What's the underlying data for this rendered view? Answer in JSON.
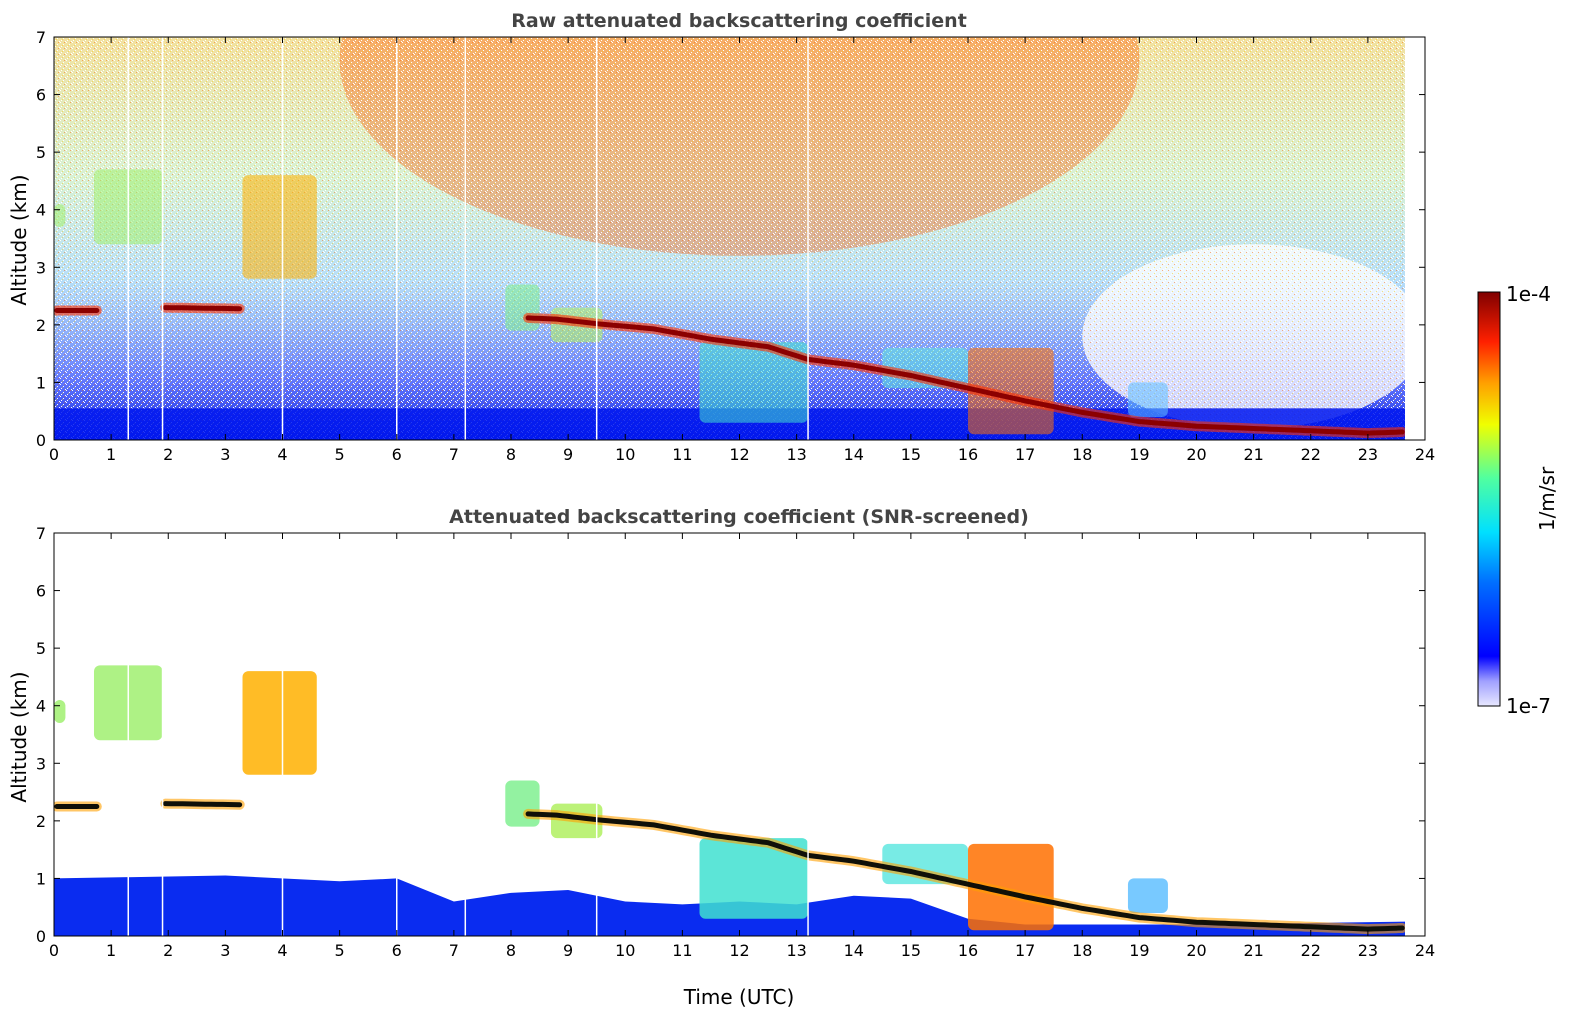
{
  "chart_data": [
    {
      "type": "heatmap",
      "title": "Raw attenuated backscattering coefficient",
      "xlabel": "",
      "ylabel": "Altitude (km)",
      "xlim": [
        0,
        24
      ],
      "ylim": [
        0,
        7
      ],
      "xticks": [
        "0",
        "1",
        "2",
        "3",
        "4",
        "5",
        "6",
        "7",
        "8",
        "9",
        "10",
        "11",
        "12",
        "13",
        "14",
        "15",
        "16",
        "17",
        "18",
        "19",
        "20",
        "21",
        "22",
        "23",
        "24"
      ],
      "yticks": [
        "0",
        "1",
        "2",
        "3",
        "4",
        "5",
        "6",
        "7"
      ],
      "data_end_time": 23.65,
      "cloud_layer": {
        "name": "boundary-layer cloud base (red/dark band)",
        "time": [
          0.05,
          0.8,
          1.95,
          3.3,
          8.3,
          8.8,
          9.5,
          10.5,
          11.5,
          12.5,
          13.2,
          14.0,
          15.0,
          16.0,
          17.0,
          18.0,
          19.0,
          20.0,
          21.0,
          22.0,
          23.0,
          23.65
        ],
        "altitude_km": [
          2.25,
          2.25,
          2.3,
          2.28,
          2.12,
          2.1,
          2.02,
          1.93,
          1.75,
          1.62,
          1.4,
          1.3,
          1.12,
          0.9,
          0.68,
          0.48,
          0.32,
          0.24,
          0.2,
          0.16,
          0.12,
          0.14
        ]
      },
      "data_gaps_utc": [
        1.3,
        1.9,
        4.0,
        6.0,
        7.2,
        9.5,
        13.2
      ]
    },
    {
      "type": "heatmap",
      "title": "Attenuated backscattering coefficient (SNR-screened)",
      "xlabel": "Time (UTC)",
      "ylabel": "Altitude (km)",
      "xlim": [
        0,
        24
      ],
      "ylim": [
        0,
        7
      ],
      "xticks": [
        "0",
        "1",
        "2",
        "3",
        "4",
        "5",
        "6",
        "7",
        "8",
        "9",
        "10",
        "11",
        "12",
        "13",
        "14",
        "15",
        "16",
        "17",
        "18",
        "19",
        "20",
        "21",
        "22",
        "23",
        "24"
      ],
      "yticks": [
        "0",
        "1",
        "2",
        "3",
        "4",
        "5",
        "6",
        "7"
      ],
      "data_end_time": 23.65
    }
  ],
  "colorbar": {
    "label": "1/m/sr",
    "max_label": "1e-4",
    "min_label": "1e-7",
    "colormap": [
      "#ffffff",
      "#0000ff",
      "#00ffff",
      "#ffff00",
      "#ff0000",
      "#800000"
    ]
  },
  "colors": {
    "title": "#444444",
    "low": "#0010ee",
    "mid": "#40e0a0",
    "high": "#ff5000",
    "peak": "#8b0000"
  }
}
